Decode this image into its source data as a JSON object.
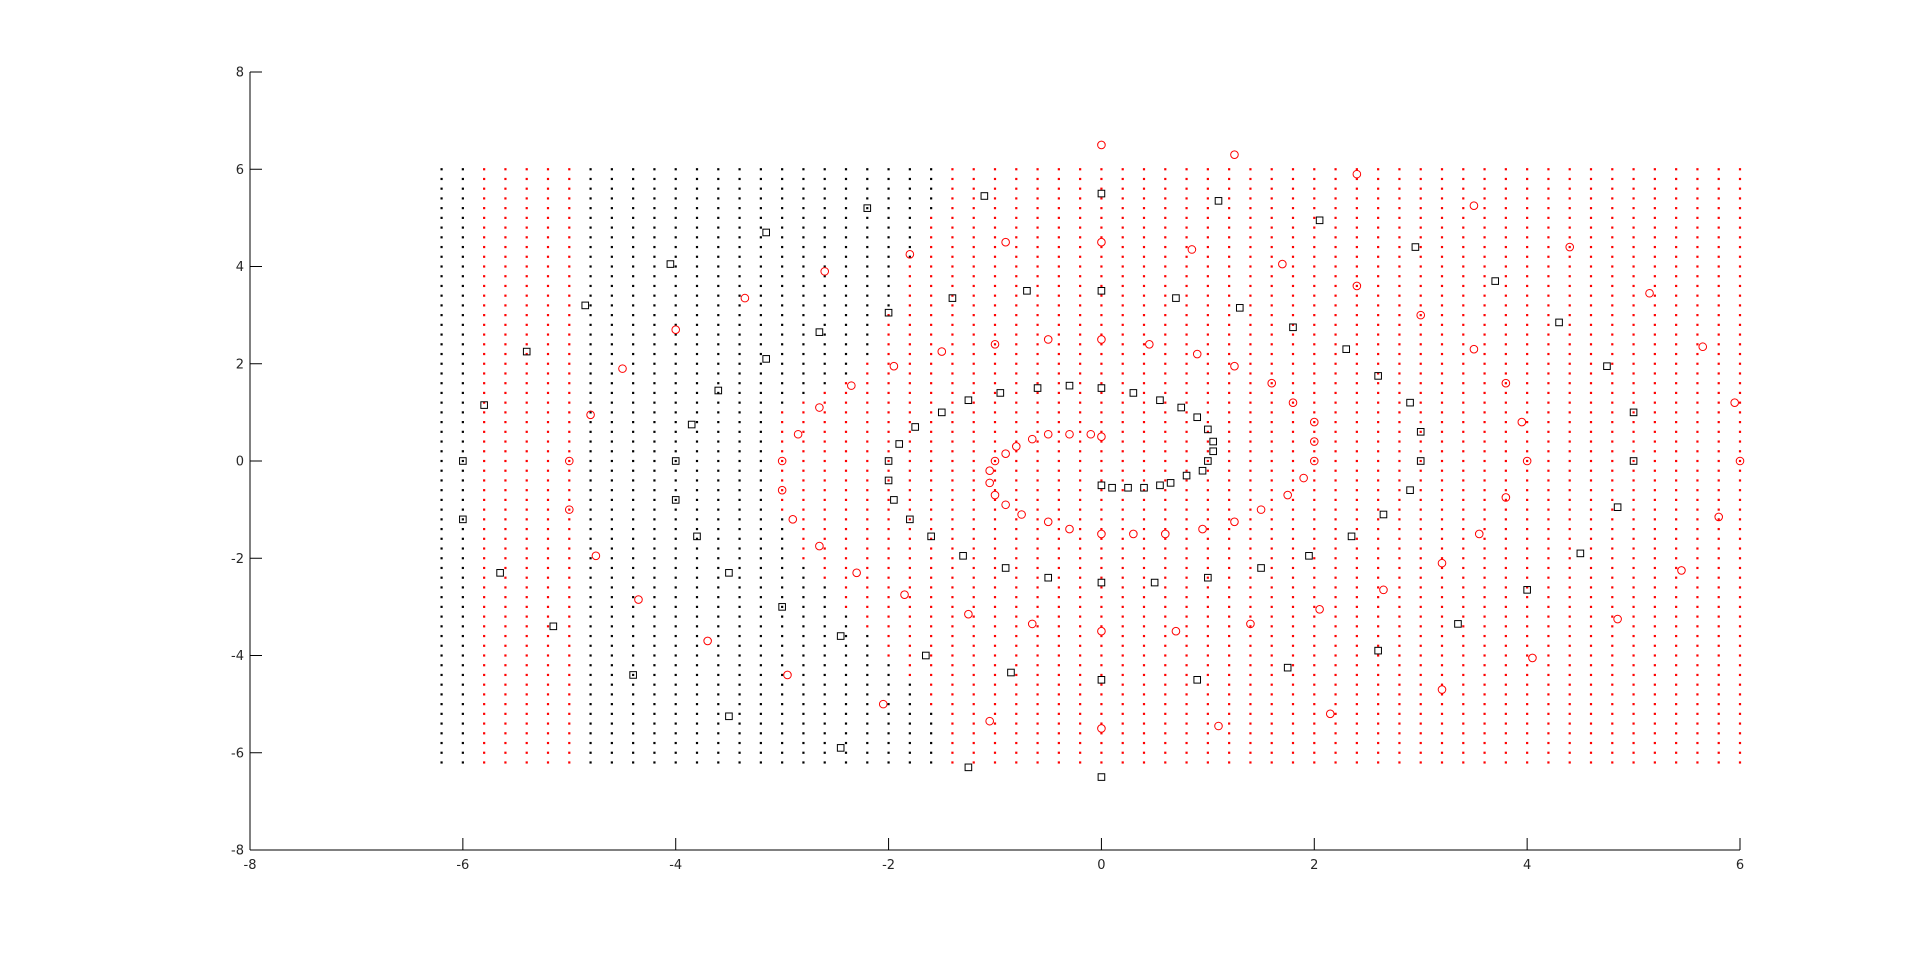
{
  "chart_data": {
    "type": "scatter",
    "xlim": [
      -8,
      6
    ],
    "ylim": [
      -8,
      8
    ],
    "x_ticks": [
      "-8",
      "-6",
      "-4",
      "-2",
      "0",
      "2",
      "4",
      "6"
    ],
    "y_ticks": [
      "-8",
      "-6",
      "-4",
      "-2",
      "0",
      "2",
      "4",
      "6",
      "8"
    ],
    "grid": false,
    "legend": "none",
    "title": "",
    "xlabel": "",
    "ylabel": "",
    "colors": {
      "black": "#000000",
      "red": "#ff0000",
      "axis": "#000000"
    },
    "background_grid": {
      "marker": "dot",
      "x_start": -6.2,
      "x_end": 6.0,
      "x_step": 0.2,
      "y_start": -6.2,
      "y_end": 6.0,
      "y_step": 0.2,
      "class_rule": "red where x*x + 2*x*y... approximated by class_boundary list",
      "class_boundary": [
        {
          "y": 6.0,
          "x_red_min": -1.4
        },
        {
          "y": 5.0,
          "x_red_min": -1.6
        },
        {
          "y": 4.0,
          "x_red_min": -1.8
        },
        {
          "y": 3.0,
          "x_red_min": -2.0
        },
        {
          "y": 2.0,
          "x_red_min": -2.2
        },
        {
          "y": 1.0,
          "x_red_min": -3.0
        },
        {
          "y": 0.0,
          "x_red_min": -3.0
        },
        {
          "y": -1.0,
          "x_red_min": -3.0
        },
        {
          "y": -2.0,
          "x_red_min": -2.8
        },
        {
          "y": -3.0,
          "x_red_min": -2.4
        },
        {
          "y": -4.0,
          "x_red_min": -2.0
        },
        {
          "y": -5.0,
          "x_red_min": -1.6
        },
        {
          "y": -6.2,
          "x_red_min": -1.4
        }
      ],
      "red_columns": [
        -5.8,
        -5.6,
        -5.4,
        -5.2,
        -5.0
      ],
      "black_columns_in_red_region": []
    },
    "series": [
      {
        "marker": "circle",
        "color": "red",
        "points": [
          [
            0,
            6.5
          ],
          [
            1.25,
            6.3
          ],
          [
            2.4,
            5.9
          ],
          [
            3.5,
            5.25
          ],
          [
            -0.9,
            4.5
          ],
          [
            0,
            4.5
          ],
          [
            0.85,
            4.35
          ],
          [
            1.7,
            4.05
          ],
          [
            -1.8,
            4.25
          ],
          [
            -2.6,
            3.9
          ],
          [
            2.4,
            3.6
          ],
          [
            4.4,
            4.4
          ],
          [
            -3.35,
            3.35
          ],
          [
            3.0,
            3.0
          ],
          [
            5.15,
            3.45
          ],
          [
            -4.0,
            2.7
          ],
          [
            -1.0,
            2.4
          ],
          [
            -0.5,
            2.5
          ],
          [
            0,
            2.5
          ],
          [
            0.45,
            2.4
          ],
          [
            0.9,
            2.2
          ],
          [
            3.5,
            2.3
          ],
          [
            5.65,
            2.35
          ],
          [
            -4.5,
            1.9
          ],
          [
            -1.5,
            2.25
          ],
          [
            -1.95,
            1.95
          ],
          [
            1.25,
            1.95
          ],
          [
            -2.35,
            1.55
          ],
          [
            1.6,
            1.6
          ],
          [
            3.8,
            1.6
          ],
          [
            -4.8,
            0.95
          ],
          [
            -2.65,
            1.1
          ],
          [
            1.8,
            1.2
          ],
          [
            5.95,
            1.2
          ],
          [
            -2.85,
            0.55
          ],
          [
            -0.8,
            0.3
          ],
          [
            -0.5,
            0.55
          ],
          [
            -0.3,
            0.55
          ],
          [
            -0.1,
            0.55
          ],
          [
            0,
            0.5
          ],
          [
            2.0,
            0.8
          ],
          [
            2.0,
            0.4
          ],
          [
            3.95,
            0.8
          ],
          [
            -0.65,
            0.45
          ],
          [
            -0.9,
            0.15
          ],
          [
            -1.0,
            0.0
          ],
          [
            -5.0,
            0.0
          ],
          [
            -3.0,
            0.0
          ],
          [
            2.0,
            0.0
          ],
          [
            4.0,
            0.0
          ],
          [
            6.0,
            0.0
          ],
          [
            -1.05,
            -0.2
          ],
          [
            -1.05,
            -0.45
          ],
          [
            1.9,
            -0.35
          ],
          [
            -3.0,
            -0.6
          ],
          [
            -1.0,
            -0.7
          ],
          [
            1.75,
            -0.7
          ],
          [
            3.8,
            -0.75
          ],
          [
            -5.0,
            -1.0
          ],
          [
            -0.9,
            -0.9
          ],
          [
            -0.75,
            -1.1
          ],
          [
            1.5,
            -1.0
          ],
          [
            -2.9,
            -1.2
          ],
          [
            -0.5,
            -1.25
          ],
          [
            1.25,
            -1.25
          ],
          [
            5.8,
            -1.15
          ],
          [
            -0.3,
            -1.4
          ],
          [
            0.95,
            -1.4
          ],
          [
            -0.0,
            -1.5
          ],
          [
            0.3,
            -1.5
          ],
          [
            0.6,
            -1.5
          ],
          [
            3.55,
            -1.5
          ],
          [
            -2.65,
            -1.75
          ],
          [
            -4.75,
            -1.95
          ],
          [
            -2.3,
            -2.3
          ],
          [
            3.2,
            -2.1
          ],
          [
            5.45,
            -2.25
          ],
          [
            -1.85,
            -2.75
          ],
          [
            2.65,
            -2.65
          ],
          [
            -4.35,
            -2.85
          ],
          [
            2.05,
            -3.05
          ],
          [
            -1.25,
            -3.15
          ],
          [
            -0.65,
            -3.35
          ],
          [
            0.7,
            -3.5
          ],
          [
            1.4,
            -3.35
          ],
          [
            4.85,
            -3.25
          ],
          [
            0,
            -3.5
          ],
          [
            -3.7,
            -3.7
          ],
          [
            -2.95,
            -4.4
          ],
          [
            4.05,
            -4.05
          ],
          [
            -2.05,
            -5.0
          ],
          [
            3.2,
            -4.7
          ],
          [
            2.15,
            -5.2
          ],
          [
            -1.05,
            -5.35
          ],
          [
            0,
            -5.5
          ],
          [
            1.1,
            -5.45
          ]
        ]
      },
      {
        "marker": "square",
        "color": "black",
        "points": [
          [
            0,
            5.5
          ],
          [
            -1.1,
            5.45
          ],
          [
            1.1,
            5.35
          ],
          [
            -2.2,
            5.2
          ],
          [
            2.05,
            4.95
          ],
          [
            -3.15,
            4.7
          ],
          [
            2.95,
            4.4
          ],
          [
            -4.05,
            4.05
          ],
          [
            3.7,
            3.7
          ],
          [
            -1.4,
            3.35
          ],
          [
            0.7,
            3.35
          ],
          [
            -0.7,
            3.5
          ],
          [
            0,
            3.5
          ],
          [
            1.3,
            3.15
          ],
          [
            -4.85,
            3.2
          ],
          [
            -2.0,
            3.05
          ],
          [
            4.3,
            2.85
          ],
          [
            -2.65,
            2.65
          ],
          [
            1.8,
            2.75
          ],
          [
            2.3,
            2.3
          ],
          [
            -5.4,
            2.25
          ],
          [
            -3.15,
            2.1
          ],
          [
            4.75,
            1.95
          ],
          [
            2.6,
            1.75
          ],
          [
            -3.6,
            1.45
          ],
          [
            -0.6,
            1.5
          ],
          [
            -0.3,
            1.55
          ],
          [
            0,
            1.5
          ],
          [
            0.3,
            1.4
          ],
          [
            -0.95,
            1.4
          ],
          [
            -1.25,
            1.25
          ],
          [
            0.55,
            1.25
          ],
          [
            2.9,
            1.2
          ],
          [
            -5.8,
            1.15
          ],
          [
            -1.5,
            1.0
          ],
          [
            0.75,
            1.1
          ],
          [
            5.0,
            1.0
          ],
          [
            0.9,
            0.9
          ],
          [
            -3.85,
            0.75
          ],
          [
            -1.75,
            0.7
          ],
          [
            1.0,
            0.65
          ],
          [
            3.0,
            0.6
          ],
          [
            1.05,
            0.4
          ],
          [
            -1.9,
            0.35
          ],
          [
            1.05,
            0.2
          ],
          [
            -6.0,
            0.0
          ],
          [
            -4.0,
            0.0
          ],
          [
            -2.0,
            0.0
          ],
          [
            1.0,
            0.0
          ],
          [
            3.0,
            0.0
          ],
          [
            5.0,
            0.0
          ],
          [
            0.95,
            -0.2
          ],
          [
            0.8,
            -0.3
          ],
          [
            -2.0,
            -0.4
          ],
          [
            0.65,
            -0.45
          ],
          [
            0,
            -0.5
          ],
          [
            0.1,
            -0.55
          ],
          [
            0.25,
            -0.55
          ],
          [
            0.4,
            -0.55
          ],
          [
            0.55,
            -0.5
          ],
          [
            2.9,
            -0.6
          ],
          [
            -4.0,
            -0.8
          ],
          [
            -1.95,
            -0.8
          ],
          [
            -6.0,
            -1.2
          ],
          [
            -1.8,
            -1.2
          ],
          [
            2.65,
            -1.1
          ],
          [
            4.85,
            -0.95
          ],
          [
            -3.8,
            -1.55
          ],
          [
            -1.6,
            -1.55
          ],
          [
            2.35,
            -1.55
          ],
          [
            -1.3,
            -1.95
          ],
          [
            1.95,
            -1.95
          ],
          [
            4.5,
            -1.9
          ],
          [
            -5.65,
            -2.3
          ],
          [
            -3.5,
            -2.3
          ],
          [
            -0.9,
            -2.2
          ],
          [
            1.5,
            -2.2
          ],
          [
            -0.5,
            -2.4
          ],
          [
            0,
            -2.5
          ],
          [
            0.5,
            -2.5
          ],
          [
            1.0,
            -2.4
          ],
          [
            4.0,
            -2.65
          ],
          [
            -3.0,
            -3.0
          ],
          [
            -5.15,
            -3.4
          ],
          [
            3.35,
            -3.35
          ],
          [
            -2.45,
            -3.6
          ],
          [
            2.6,
            -3.9
          ],
          [
            -1.65,
            -4.0
          ],
          [
            -0.85,
            -4.35
          ],
          [
            1.75,
            -4.25
          ],
          [
            -4.4,
            -4.4
          ],
          [
            0,
            -4.5
          ],
          [
            0.9,
            -4.5
          ],
          [
            -3.5,
            -5.25
          ],
          [
            -2.45,
            -5.9
          ],
          [
            -1.25,
            -6.3
          ],
          [
            0,
            -6.5
          ]
        ]
      }
    ]
  }
}
